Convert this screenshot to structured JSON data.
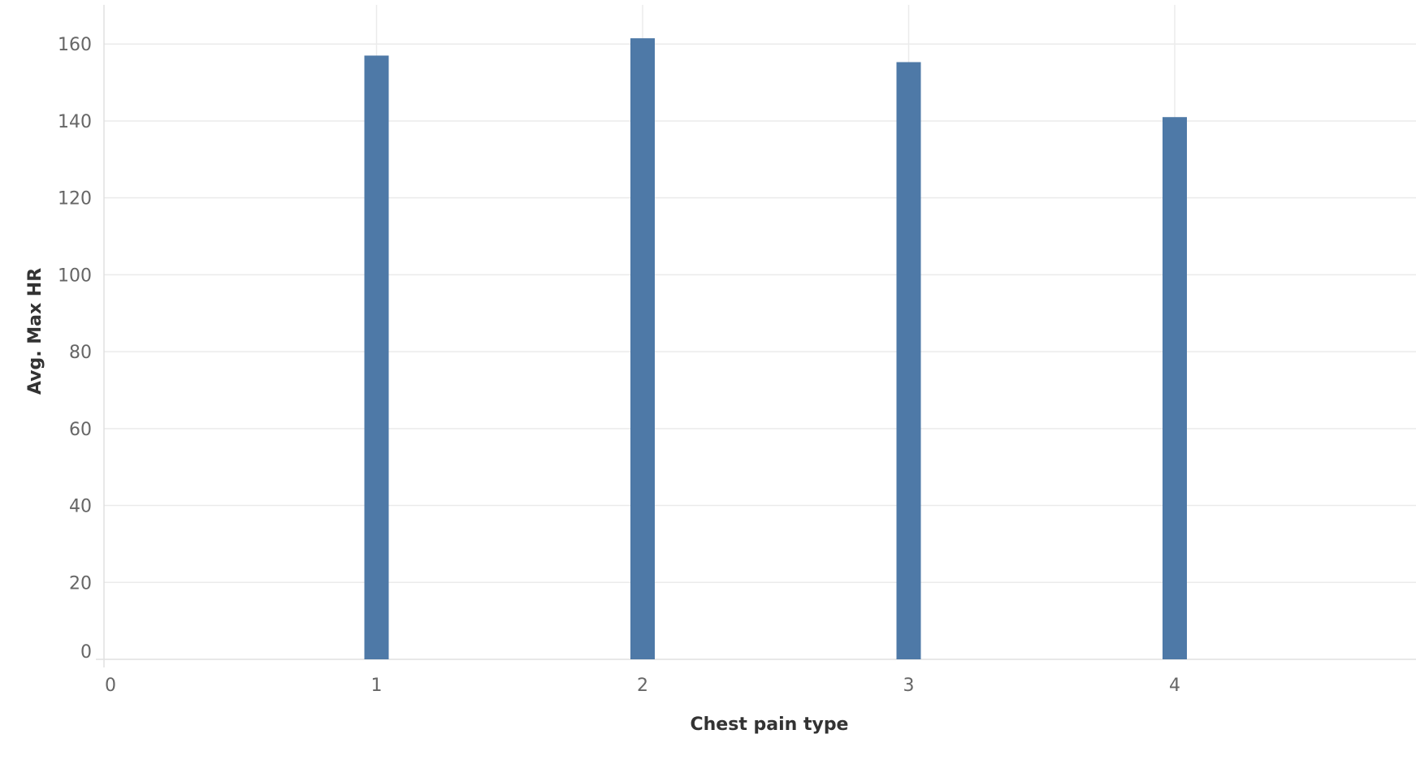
{
  "chart_data": {
    "type": "bar",
    "xlabel": "Chest pain type",
    "ylabel": "Avg. Max HR",
    "categories": [
      1,
      2,
      3,
      4
    ],
    "values": [
      157.0,
      161.5,
      155.3,
      141.0
    ],
    "xlim": [
      0,
      4.85
    ],
    "ylim": [
      0,
      170
    ],
    "x_ticks": [
      "0",
      "1",
      "2",
      "3",
      "4"
    ],
    "y_ticks": [
      "0",
      "20",
      "40",
      "60",
      "80",
      "100",
      "120",
      "140",
      "160"
    ],
    "grid": true,
    "bar_color": "#4e79a7"
  }
}
